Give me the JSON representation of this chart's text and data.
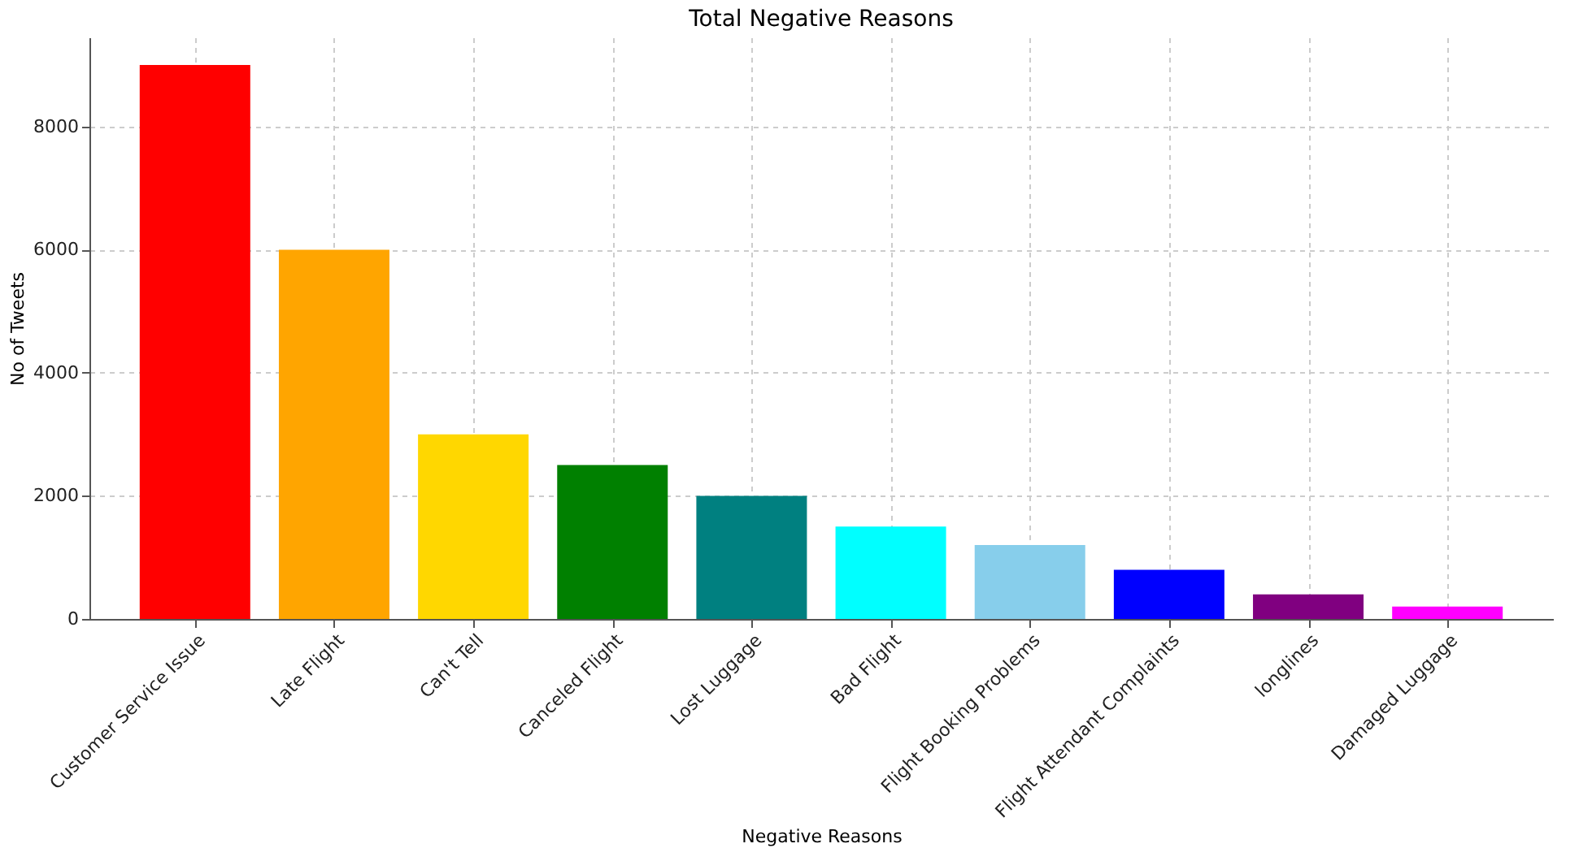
{
  "chart_data": {
    "type": "bar",
    "title": "Total Negative Reasons",
    "xlabel": "Negative Reasons",
    "ylabel": "No of Tweets",
    "categories": [
      "Customer Service Issue",
      "Late Flight",
      "Can't Tell",
      "Canceled Flight",
      "Lost Luggage",
      "Bad Flight",
      "Flight Booking Problems",
      "Flight Attendant Complaints",
      "longlines",
      "Damaged Luggage"
    ],
    "values": [
      9000,
      6000,
      3000,
      2500,
      2000,
      1500,
      1200,
      800,
      400,
      200
    ],
    "colors": [
      "#ff0000",
      "#ffa500",
      "#ffd700",
      "#008000",
      "#008080",
      "#00ffff",
      "#87ceeb",
      "#0000ff",
      "#800080",
      "#ff00ff"
    ],
    "ylim": [
      0,
      9450
    ],
    "yticks": [
      0,
      2000,
      4000,
      6000,
      8000
    ],
    "grid": true
  }
}
